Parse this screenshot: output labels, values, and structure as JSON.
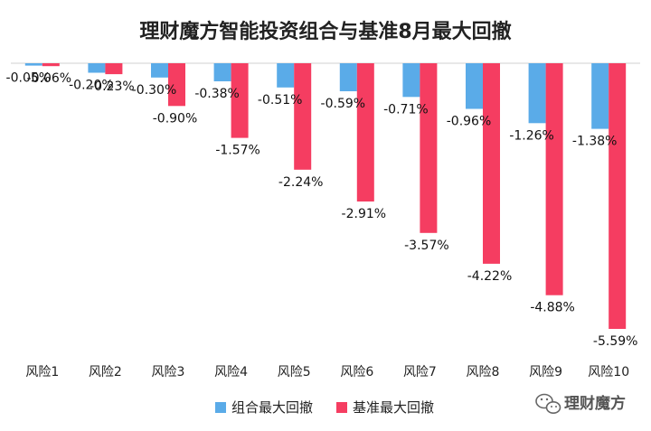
{
  "chart_data": {
    "type": "bar",
    "title": "理财魔方智能投资组合与基准8月最大回撤",
    "categories": [
      "风险1",
      "风险2",
      "风险3",
      "风险4",
      "风险5",
      "风险6",
      "风险7",
      "风险8",
      "风险9",
      "风险10"
    ],
    "series": [
      {
        "name": "组合最大回撤",
        "color": "#5aabe8",
        "values": [
          -0.05,
          -0.2,
          -0.3,
          -0.38,
          -0.51,
          -0.59,
          -0.71,
          -0.96,
          -1.26,
          -1.38
        ],
        "labels": [
          "-0.05%",
          "-0.20%",
          "-0.30%",
          "-0.38%",
          "-0.51%",
          "-0.59%",
          "-0.71%",
          "-0.96%",
          "-1.26%",
          "-1.38%"
        ]
      },
      {
        "name": "基准最大回撤",
        "color": "#f53d61",
        "values": [
          -0.06,
          -0.23,
          -0.9,
          -1.57,
          -2.24,
          -2.91,
          -3.57,
          -4.22,
          -4.88,
          -5.59
        ],
        "labels": [
          "-0.06%",
          "-0.23%",
          "-0.90%",
          "-1.57%",
          "-2.24%",
          "-2.91%",
          "-3.57%",
          "-4.22%",
          "-4.88%",
          "-5.59%"
        ]
      }
    ],
    "ylim": [
      -5.59,
      0
    ],
    "grid": false,
    "legend": "bottom"
  },
  "watermark": {
    "text": "理财魔方",
    "icon": "wechat-icon"
  }
}
